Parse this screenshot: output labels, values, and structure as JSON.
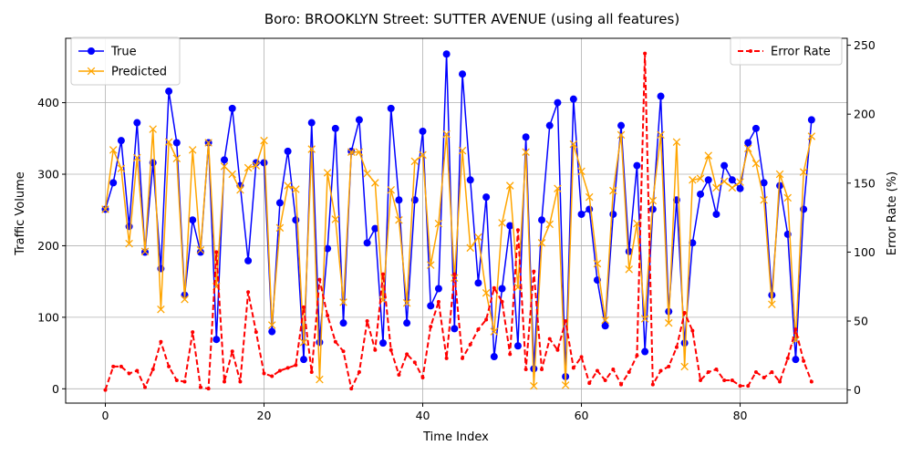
{
  "chart_data": {
    "type": "line",
    "title": "Boro: BROOKLYN Street: SUTTER AVENUE (using all features)",
    "xlabel": "Time Index",
    "ylabel": "Traffic Volume",
    "y2label": "Error Rate (%)",
    "xlim": [
      -5,
      93.5
    ],
    "ylim": [
      -20,
      490
    ],
    "y2lim": [
      -9.5,
      255
    ],
    "xticks": [
      0,
      20,
      40,
      60,
      80
    ],
    "yticks": [
      0,
      100,
      200,
      300,
      400
    ],
    "y2ticks": [
      0,
      50,
      100,
      150,
      200,
      250
    ],
    "grid": true,
    "legend_left": "upper-left",
    "legend_right": "upper-right",
    "x": [
      0,
      1,
      2,
      3,
      4,
      5,
      6,
      7,
      8,
      9,
      10,
      11,
      12,
      13,
      14,
      15,
      16,
      17,
      18,
      19,
      20,
      21,
      22,
      23,
      24,
      25,
      26,
      27,
      28,
      29,
      30,
      31,
      32,
      33,
      34,
      35,
      36,
      37,
      38,
      39,
      40,
      41,
      42,
      43,
      44,
      45,
      46,
      47,
      48,
      49,
      50,
      51,
      52,
      53,
      54,
      55,
      56,
      57,
      58,
      59,
      60,
      61,
      62,
      63,
      64,
      65,
      66,
      67,
      68,
      69,
      70,
      71,
      72,
      73,
      74,
      75,
      76,
      77,
      78,
      79,
      80,
      81,
      82,
      83,
      84,
      85,
      86,
      87,
      88,
      89
    ],
    "series": [
      {
        "name": "True",
        "axis": "left",
        "color": "#0000ff",
        "marker": "circle",
        "values": [
          251,
          288,
          347,
          227,
          372,
          191,
          316,
          168,
          416,
          344,
          131,
          236,
          191,
          344,
          69,
          320,
          392,
          284,
          179,
          316,
          316,
          80,
          260,
          332,
          236,
          41,
          372,
          65,
          196,
          364,
          92,
          332,
          376,
          204,
          224,
          64,
          392,
          264,
          92,
          264,
          360,
          116,
          140,
          468,
          84,
          440,
          292,
          148,
          268,
          45,
          140,
          228,
          60,
          352,
          28,
          236,
          368,
          400,
          17,
          405,
          244,
          251,
          152,
          88,
          244,
          368,
          192,
          312,
          52,
          251,
          409,
          108,
          264,
          64,
          204,
          272,
          292,
          244,
          312,
          292,
          280,
          344,
          364,
          288,
          131,
          284,
          216,
          41,
          251,
          376
        ]
      },
      {
        "name": "Predicted",
        "axis": "left",
        "color": "#ffa500",
        "marker": "x",
        "values": [
          251,
          334,
          308,
          203,
          323,
          192,
          363,
          111,
          345,
          322,
          125,
          334,
          194,
          344,
          143,
          311,
          300,
          278,
          309,
          312,
          347,
          89,
          225,
          284,
          279,
          65,
          335,
          13,
          302,
          237,
          121,
          331,
          331,
          301,
          288,
          124,
          278,
          236,
          120,
          318,
          327,
          173,
          231,
          356,
          155,
          333,
          197,
          212,
          134,
          80,
          232,
          284,
          142,
          331,
          4,
          204,
          230,
          280,
          5,
          342,
          304,
          268,
          175,
          96,
          277,
          355,
          167,
          231,
          98,
          263,
          355,
          92,
          345,
          31,
          292,
          294,
          326,
          281,
          290,
          281,
          289,
          336,
          315,
          264,
          118,
          300,
          267,
          68,
          303,
          353
        ]
      },
      {
        "name": "Error Rate",
        "axis": "right",
        "color": "#ff0000",
        "marker": "dot",
        "dashed": true,
        "values": [
          0,
          17,
          17,
          12,
          14,
          2,
          15,
          35,
          17,
          7,
          6,
          42,
          2,
          1,
          100,
          6,
          28,
          6,
          71,
          42,
          12,
          10,
          14,
          16,
          18,
          60,
          13,
          80,
          54,
          35,
          28,
          1,
          13,
          50,
          29,
          84,
          29,
          11,
          26,
          20,
          9,
          46,
          64,
          23,
          84,
          23,
          33,
          44,
          51,
          74,
          64,
          26,
          116,
          15,
          86,
          15,
          37,
          29,
          50,
          16,
          24,
          5,
          14,
          7,
          15,
          4,
          13,
          25,
          244,
          4,
          14,
          17,
          31,
          56,
          43,
          7,
          13,
          15,
          7,
          7,
          3,
          3,
          13,
          9,
          13,
          6,
          23,
          44,
          21,
          6
        ]
      }
    ]
  }
}
